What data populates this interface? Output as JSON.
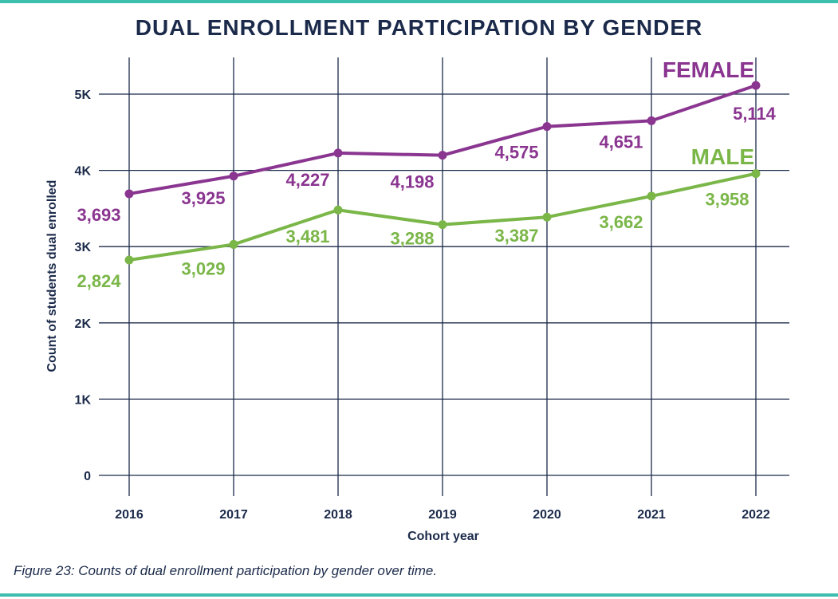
{
  "title": "DUAL ENROLLMENT PARTICIPATION BY GENDER",
  "caption": "Figure 23: Counts of dual enrollment participation by gender over time.",
  "colors": {
    "female": "#8a3590",
    "male": "#7ab648",
    "grid": "#1b2a4a",
    "text": "#1b2a4a",
    "accent": "#3dbfae"
  },
  "chart_data": {
    "type": "line",
    "title": "DUAL ENROLLMENT PARTICIPATION BY GENDER",
    "xlabel": "Cohort year",
    "ylabel": "Count of students dual enrolled",
    "categories": [
      "2016",
      "2017",
      "2018",
      "2019",
      "2020",
      "2021",
      "2022"
    ],
    "ylim": [
      0,
      5500
    ],
    "yticks": [
      0,
      1000,
      2000,
      3000,
      4000,
      5000
    ],
    "ytick_labels": [
      "0",
      "1K",
      "2K",
      "3K",
      "4K",
      "5K"
    ],
    "grid": true,
    "series": [
      {
        "name": "FEMALE",
        "color": "#8a3590",
        "values": [
          3693,
          3925,
          4227,
          4198,
          4575,
          4651,
          5114
        ],
        "labels": [
          "3,693",
          "3,925",
          "4,227",
          "4,198",
          "4,575",
          "4,651",
          "5,114"
        ]
      },
      {
        "name": "MALE",
        "color": "#7ab648",
        "values": [
          2824,
          3029,
          3481,
          3288,
          3387,
          3662,
          3958
        ],
        "labels": [
          "2,824",
          "3,029",
          "3,481",
          "3,288",
          "3,387",
          "3,662",
          "3,958"
        ]
      }
    ]
  }
}
